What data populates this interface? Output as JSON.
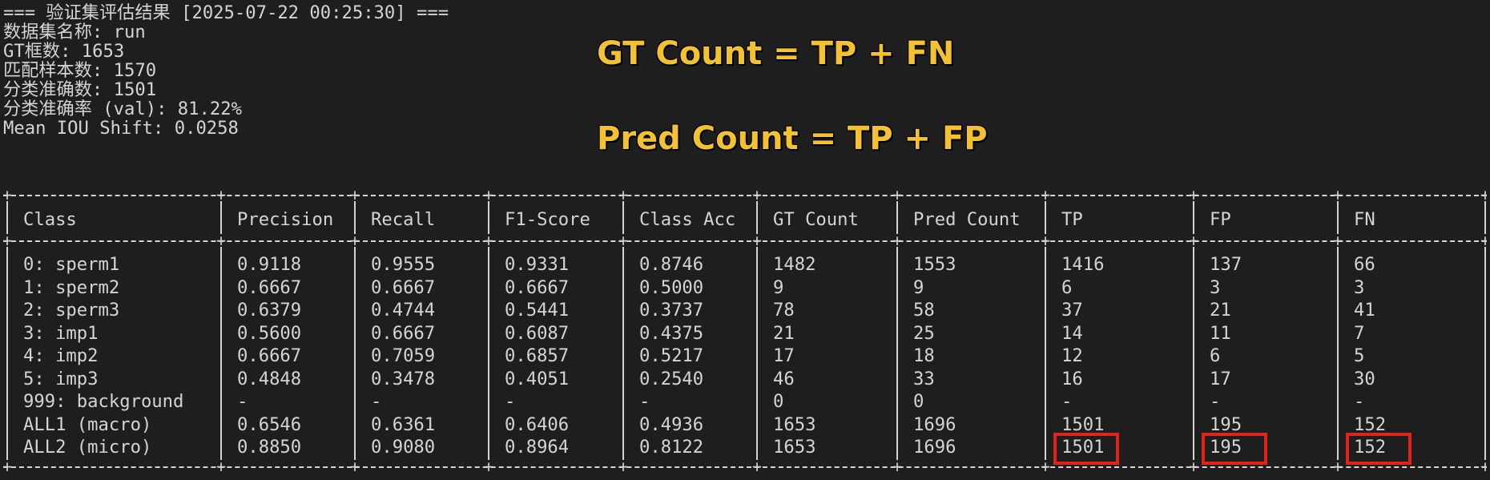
{
  "header": {
    "title_line": "=== 验证集评估结果 [2025-07-22 00:25:30] ===",
    "dataset_line": "数据集名称: run",
    "gt_boxes_line": "GT框数: 1653",
    "matched_line": "匹配样本数: 1570",
    "correct_line": "分类准确数: 1501",
    "accuracy_line": "分类准确率 (val): 81.22%",
    "iou_line": "Mean IOU Shift: 0.0258"
  },
  "callouts": {
    "gt": "GT Count = TP + FN",
    "pred": "Pred Count = TP + FP"
  },
  "table": {
    "columns": [
      "Class",
      "Precision",
      "Recall",
      "F1-Score",
      "Class Acc",
      "GT Count",
      "Pred Count",
      "TP",
      "FP",
      "FN"
    ],
    "rows": [
      [
        "0: sperm1",
        "0.9118",
        "0.9555",
        "0.9331",
        "0.8746",
        "1482",
        "1553",
        "1416",
        "137",
        "66"
      ],
      [
        "1: sperm2",
        "0.6667",
        "0.6667",
        "0.6667",
        "0.5000",
        "9",
        "9",
        "6",
        "3",
        "3"
      ],
      [
        "2: sperm3",
        "0.6379",
        "0.4744",
        "0.5441",
        "0.3737",
        "78",
        "58",
        "37",
        "21",
        "41"
      ],
      [
        "3: imp1",
        "0.5600",
        "0.6667",
        "0.6087",
        "0.4375",
        "21",
        "25",
        "14",
        "11",
        "7"
      ],
      [
        "4: imp2",
        "0.6667",
        "0.7059",
        "0.6857",
        "0.5217",
        "17",
        "18",
        "12",
        "6",
        "5"
      ],
      [
        "5: imp3",
        "0.4848",
        "0.3478",
        "0.4051",
        "0.2540",
        "46",
        "33",
        "16",
        "17",
        "30"
      ],
      [
        "999: background",
        "-",
        "-",
        "-",
        "-",
        "0",
        "0",
        "-",
        "-",
        "-"
      ],
      [
        "ALL1 (macro)",
        "0.6546",
        "0.6361",
        "0.6406",
        "0.4936",
        "1653",
        "1696",
        "1501",
        "195",
        "152"
      ],
      [
        "ALL2 (micro)",
        "0.8850",
        "0.9080",
        "0.8964",
        "0.8122",
        "1653",
        "1696",
        "1501",
        "195",
        "152"
      ]
    ]
  },
  "colors": {
    "background": "#1e1e1e",
    "text": "#d4d4d4",
    "callout": "#f4c230",
    "highlight": "#e2231a"
  }
}
